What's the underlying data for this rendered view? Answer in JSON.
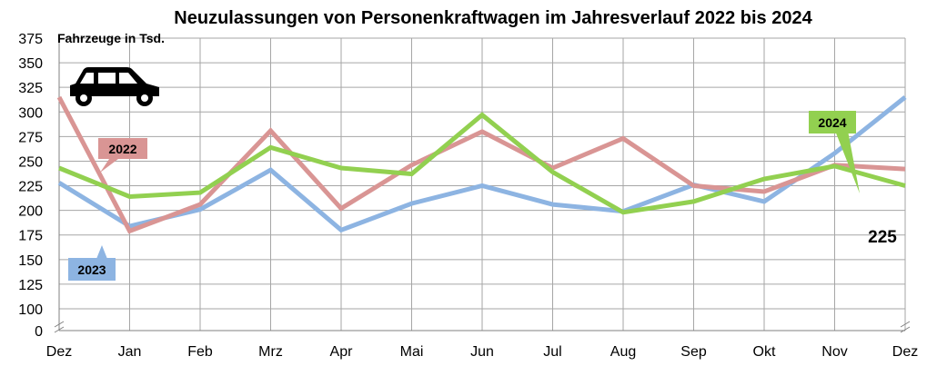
{
  "chart_data": {
    "type": "line",
    "title": "Neuzulassungen von Personenkraftwagen im Jahresverlauf 2022 bis 2024",
    "ylabel": "Fahrzeuge in Tsd.",
    "categories": [
      "Dez",
      "Jan",
      "Feb",
      "Mrz",
      "Apr",
      "Mai",
      "Jun",
      "Jul",
      "Aug",
      "Sep",
      "Okt",
      "Nov",
      "Dez"
    ],
    "y_ticks": [
      "0",
      "100",
      "125",
      "150",
      "175",
      "200",
      "225",
      "250",
      "275",
      "300",
      "325",
      "350",
      "375"
    ],
    "ylim": [
      100,
      375
    ],
    "axis_break": true,
    "grid": true,
    "series": [
      {
        "name": "2022",
        "color": "#8db4e2",
        "values": [
          228,
          184,
          201,
          241,
          180,
          207,
          225,
          206,
          199,
          226,
          209,
          258,
          315
        ]
      },
      {
        "name": "2023",
        "color": "#d99594",
        "values": [
          315,
          179,
          206,
          281,
          202,
          246,
          280,
          243,
          273,
          225,
          219,
          246,
          242
        ]
      },
      {
        "name": "2024",
        "color": "#92d050",
        "values": [
          243,
          214,
          218,
          264,
          243,
          237,
          297,
          239,
          198,
          209,
          232,
          245,
          225
        ]
      }
    ],
    "annotations": [
      {
        "text": "225"
      }
    ]
  },
  "icons": {
    "car": "car-icon"
  }
}
